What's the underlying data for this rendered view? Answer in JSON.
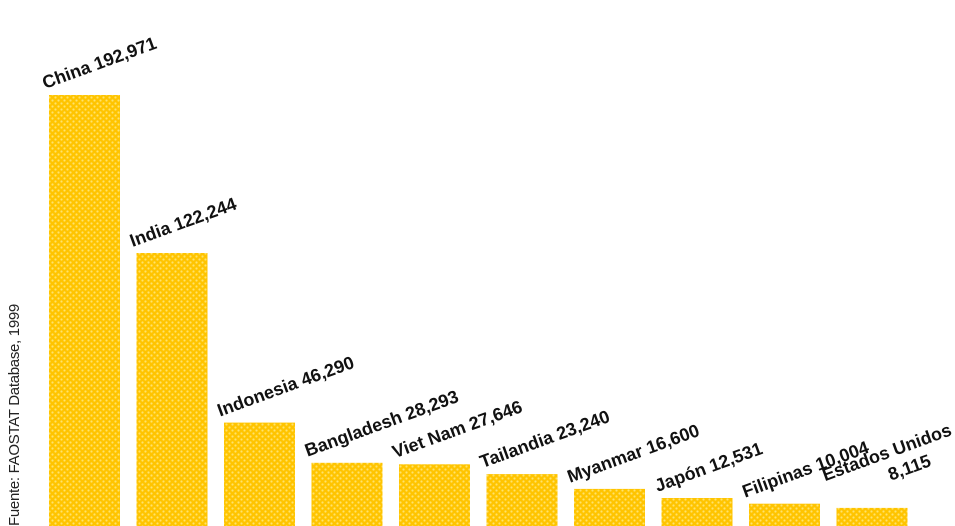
{
  "source_note": "Fuente: FAOSTAT Database, 1999",
  "colors": {
    "bar": "#FFC400",
    "bar_dots": "#FFE36B",
    "label": "#111111"
  },
  "chart_data": {
    "type": "bar",
    "categories": [
      "China",
      "India",
      "Indonesia",
      "Bangladesh",
      "Viet Nam",
      "Tailandia",
      "Myanmar",
      "Japón",
      "Filipinas",
      "Estados Unidos"
    ],
    "values": [
      192971,
      122244,
      46290,
      28293,
      27646,
      23240,
      16600,
      12531,
      10004,
      8115
    ],
    "labels": [
      "China 192,971",
      "India 122,244",
      "Indonesia 46,290",
      "Bangladesh 28,293",
      "Viet Nam 27,646",
      "Tailandia 23,240",
      "Myanmar 16,600",
      "Japón 12,531",
      "Filipinas 10,004",
      "Estados Unidos 8,115"
    ],
    "title": "",
    "xlabel": "",
    "ylabel": "",
    "grid": false,
    "legend": "none"
  }
}
